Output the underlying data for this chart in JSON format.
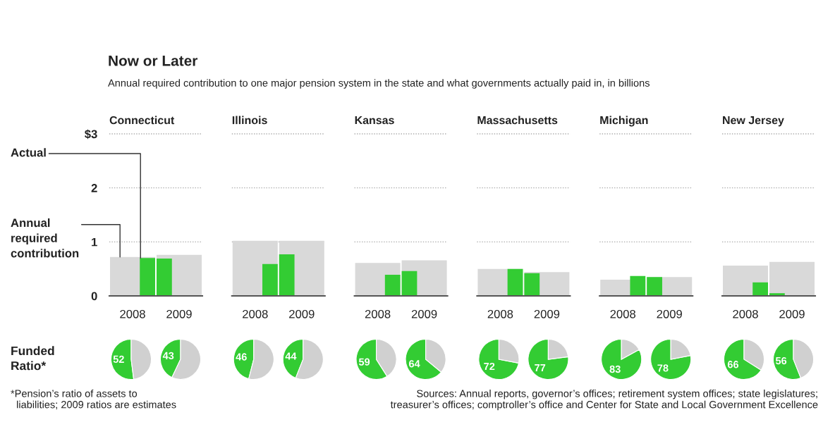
{
  "chart_data": [
    {
      "type": "other",
      "title": "Now or Later",
      "subtitle": "Annual required contribution to one major pension system in the state and what governments actually paid in, in billions",
      "annotations": [
        "*Pension’s ratio of assets to\n  liabilities; 2009 ratios are estimates",
        "Sources: Annual reports, governor’s offices; retirement system offices; state legislatures;\ntreasurer’s offices; comptroller’s office and Center for State and Local Government Excellence"
      ]
    },
    {
      "type": "bar",
      "title": "Connecticut",
      "categories": [
        "2008",
        "2009"
      ],
      "ylim": [
        0,
        3
      ],
      "yticks": [
        0,
        1,
        2,
        {
          "value": 3,
          "label": "$3"
        }
      ],
      "grid": "y",
      "series": [
        {
          "name": "Annual required contribution",
          "color": "#d9d9d9",
          "values": [
            0.72,
            0.76
          ]
        },
        {
          "name": "Actual",
          "color": "#33cc33",
          "values": [
            0.7,
            0.69
          ]
        }
      ]
    },
    {
      "type": "bar",
      "title": "Illinois",
      "categories": [
        "2008",
        "2009"
      ],
      "ylim": [
        0,
        3
      ],
      "yticks": [
        0,
        1,
        2,
        3
      ],
      "grid": "y",
      "tick_labels": "x",
      "series": [
        {
          "color": "#d9d9d9",
          "values": [
            1.02,
            1.02
          ]
        },
        {
          "color": "#33cc33",
          "values": [
            0.59,
            0.77
          ]
        }
      ]
    },
    {
      "type": "bar",
      "title": "Kansas",
      "categories": [
        "2008",
        "2009"
      ],
      "ylim": [
        0,
        3
      ],
      "yticks": [
        0,
        1,
        2,
        3
      ],
      "grid": "y",
      "tick_labels": "x",
      "series": [
        {
          "color": "#d9d9d9",
          "values": [
            0.61,
            0.66
          ]
        },
        {
          "color": "#33cc33",
          "values": [
            0.39,
            0.46
          ]
        }
      ]
    },
    {
      "type": "bar",
      "title": "Massachusetts",
      "categories": [
        "2008",
        "2009"
      ],
      "ylim": [
        0,
        3
      ],
      "yticks": [
        0,
        1,
        2,
        3
      ],
      "grid": "y",
      "tick_labels": "x",
      "series": [
        {
          "color": "#d9d9d9",
          "values": [
            0.5,
            0.44
          ]
        },
        {
          "color": "#33cc33",
          "values": [
            0.5,
            0.42
          ]
        }
      ]
    },
    {
      "type": "bar",
      "title": "Michigan",
      "categories": [
        "2008",
        "2009"
      ],
      "ylim": [
        0,
        3
      ],
      "yticks": [
        0,
        1,
        2,
        3
      ],
      "grid": "y",
      "tick_labels": "x",
      "series": [
        {
          "color": "#d9d9d9",
          "values": [
            0.3,
            0.35
          ]
        },
        {
          "color": "#33cc33",
          "values": [
            0.37,
            0.35
          ]
        }
      ]
    },
    {
      "type": "bar",
      "title": "New Jersey",
      "categories": [
        "2008",
        "2009"
      ],
      "ylim": [
        0,
        3
      ],
      "yticks": [
        0,
        1,
        2,
        3
      ],
      "grid": "y",
      "tick_labels": "x",
      "series": [
        {
          "color": "#d9d9d9",
          "values": [
            0.56,
            0.63
          ]
        },
        {
          "color": "#33cc33",
          "values": [
            0.25,
            0.05
          ]
        }
      ]
    },
    {
      "type": "pie",
      "categories": [
        null,
        null
      ],
      "values": [
        52,
        48
      ],
      "colors": [
        "#33cc33",
        "#d0d0d0"
      ],
      "value_labels": [
        "52",
        null
      ],
      "annotations": [
        "Funded\nRatio*"
      ]
    },
    {
      "type": "pie",
      "categories": [
        null,
        null
      ],
      "values": [
        43,
        57
      ],
      "colors": [
        "#33cc33",
        "#d0d0d0"
      ],
      "value_labels": [
        "43",
        null
      ]
    },
    {
      "type": "pie",
      "categories": [
        null,
        null
      ],
      "values": [
        46,
        54
      ],
      "colors": [
        "#33cc33",
        "#d0d0d0"
      ],
      "value_labels": [
        "46",
        null
      ]
    },
    {
      "type": "pie",
      "categories": [
        null,
        null
      ],
      "values": [
        44,
        56
      ],
      "colors": [
        "#33cc33",
        "#d0d0d0"
      ],
      "value_labels": [
        "44",
        null
      ]
    },
    {
      "type": "pie",
      "categories": [
        null,
        null
      ],
      "values": [
        59,
        41
      ],
      "colors": [
        "#33cc33",
        "#d0d0d0"
      ],
      "value_labels": [
        "59",
        null
      ]
    },
    {
      "type": "pie",
      "categories": [
        null,
        null
      ],
      "values": [
        64,
        36
      ],
      "colors": [
        "#33cc33",
        "#d0d0d0"
      ],
      "value_labels": [
        "64",
        null
      ]
    },
    {
      "type": "pie",
      "categories": [
        null,
        null
      ],
      "values": [
        72,
        28
      ],
      "colors": [
        "#33cc33",
        "#d0d0d0"
      ],
      "value_labels": [
        "72",
        null
      ]
    },
    {
      "type": "pie",
      "categories": [
        null,
        null
      ],
      "values": [
        77,
        23
      ],
      "colors": [
        "#33cc33",
        "#d0d0d0"
      ],
      "value_labels": [
        "77",
        null
      ]
    },
    {
      "type": "pie",
      "categories": [
        null,
        null
      ],
      "values": [
        83,
        17
      ],
      "colors": [
        "#33cc33",
        "#d0d0d0"
      ],
      "value_labels": [
        "83",
        null
      ]
    },
    {
      "type": "pie",
      "categories": [
        null,
        null
      ],
      "values": [
        78,
        22
      ],
      "colors": [
        "#33cc33",
        "#d0d0d0"
      ],
      "value_labels": [
        "78",
        null
      ]
    },
    {
      "type": "pie",
      "categories": [
        null,
        null
      ],
      "values": [
        66,
        34
      ],
      "colors": [
        "#33cc33",
        "#d0d0d0"
      ],
      "value_labels": [
        "66",
        null
      ]
    },
    {
      "type": "pie",
      "categories": [
        null,
        null
      ],
      "values": [
        56,
        44
      ],
      "colors": [
        "#33cc33",
        "#d0d0d0"
      ],
      "value_labels": [
        "56",
        null
      ]
    }
  ]
}
